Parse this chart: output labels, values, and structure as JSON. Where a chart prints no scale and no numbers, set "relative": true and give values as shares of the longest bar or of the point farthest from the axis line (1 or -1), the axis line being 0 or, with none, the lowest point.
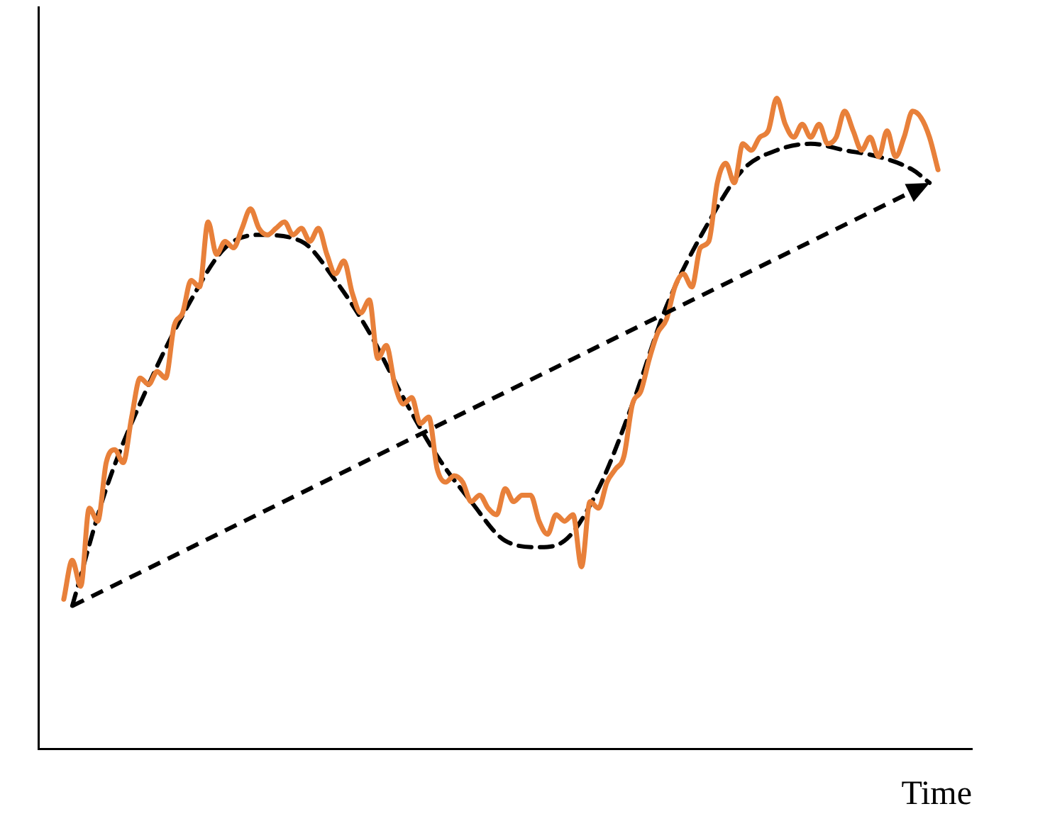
{
  "chart_data": {
    "type": "line",
    "xlabel": "Time",
    "relative": true,
    "marker": "none",
    "categories": [
      null,
      null,
      null,
      null,
      null,
      null,
      null,
      null,
      null,
      null,
      null,
      null,
      null,
      null,
      null,
      null,
      null,
      null,
      null,
      null,
      null,
      null,
      null,
      null,
      null,
      null,
      null,
      null,
      null,
      null,
      null,
      null,
      null,
      null,
      null,
      null,
      null,
      null,
      null,
      null,
      null,
      null,
      null,
      null,
      null,
      null,
      null,
      null,
      null,
      null,
      null,
      null,
      null,
      null,
      null,
      null,
      null,
      null,
      null,
      null,
      null,
      null,
      null,
      null,
      null,
      null,
      null,
      null,
      null,
      null,
      null,
      null,
      null,
      null,
      null,
      null,
      null,
      null,
      null,
      null,
      null,
      null,
      null,
      null,
      null,
      null,
      null,
      null,
      null,
      null,
      null,
      null,
      null,
      null,
      null,
      null,
      null,
      null,
      null,
      null,
      null,
      null,
      null,
      null,
      null,
      null,
      null,
      null,
      null,
      null,
      null
    ],
    "series": [
      {
        "color": "#e8803a",
        "line_style": "solid",
        "values": [
          null,
          null,
          null,
          0.23,
          0.29,
          0.25,
          0.37,
          0.35,
          0.44,
          0.46,
          0.44,
          0.51,
          0.57,
          0.56,
          0.58,
          0.57,
          0.65,
          0.67,
          0.72,
          0.71,
          0.81,
          0.76,
          0.78,
          0.77,
          0.8,
          0.83,
          0.8,
          0.79,
          0.8,
          0.81,
          0.79,
          0.8,
          0.78,
          0.8,
          0.76,
          0.73,
          0.75,
          0.7,
          0.67,
          0.69,
          0.6,
          0.62,
          0.56,
          0.53,
          0.54,
          0.5,
          0.51,
          0.43,
          0.41,
          0.42,
          0.41,
          0.38,
          0.39,
          0.37,
          0.36,
          0.4,
          0.38,
          0.39,
          0.39,
          0.35,
          0.33,
          0.36,
          0.35,
          0.36,
          0.28,
          0.38,
          0.37,
          0.41,
          0.43,
          0.45,
          0.53,
          0.55,
          0.6,
          0.64,
          0.66,
          0.71,
          0.73,
          0.71,
          0.77,
          0.78,
          0.87,
          0.9,
          0.87,
          0.93,
          0.92,
          0.94,
          0.95,
          1,
          0.96,
          0.94,
          0.96,
          0.94,
          0.96,
          0.93,
          0.94,
          0.98,
          0.95,
          0.92,
          0.94,
          0.91,
          0.95,
          0.91,
          0.94,
          0.98,
          0.97,
          0.94,
          0.89,
          null,
          null,
          null,
          null
        ]
      },
      {
        "color": "#000000",
        "line_style": "dashed",
        "values": [
          null,
          null,
          null,
          null,
          0.22,
          null,
          null,
          null,
          0.4,
          null,
          null,
          null,
          null,
          0.56,
          null,
          null,
          null,
          null,
          0.69,
          null,
          null,
          null,
          0.77,
          null,
          null,
          null,
          0.79,
          null,
          null,
          null,
          null,
          0.78,
          null,
          null,
          null,
          0.72,
          null,
          null,
          null,
          0.64,
          null,
          null,
          null,
          0.54,
          null,
          null,
          null,
          0.45,
          null,
          null,
          null,
          0.38,
          null,
          null,
          null,
          0.32,
          null,
          null,
          null,
          0.31,
          null,
          null,
          0.32,
          null,
          null,
          null,
          0.4,
          null,
          null,
          null,
          0.53,
          null,
          null,
          null,
          0.68,
          null,
          null,
          null,
          null,
          0.81,
          null,
          null,
          null,
          0.89,
          null,
          null,
          null,
          0.92,
          null,
          null,
          null,
          0.93,
          null,
          null,
          null,
          0.92,
          null,
          null,
          null,
          0.91,
          null,
          null,
          null,
          0.89,
          null,
          0.87,
          null,
          null,
          null,
          null,
          null
        ]
      }
    ]
  }
}
